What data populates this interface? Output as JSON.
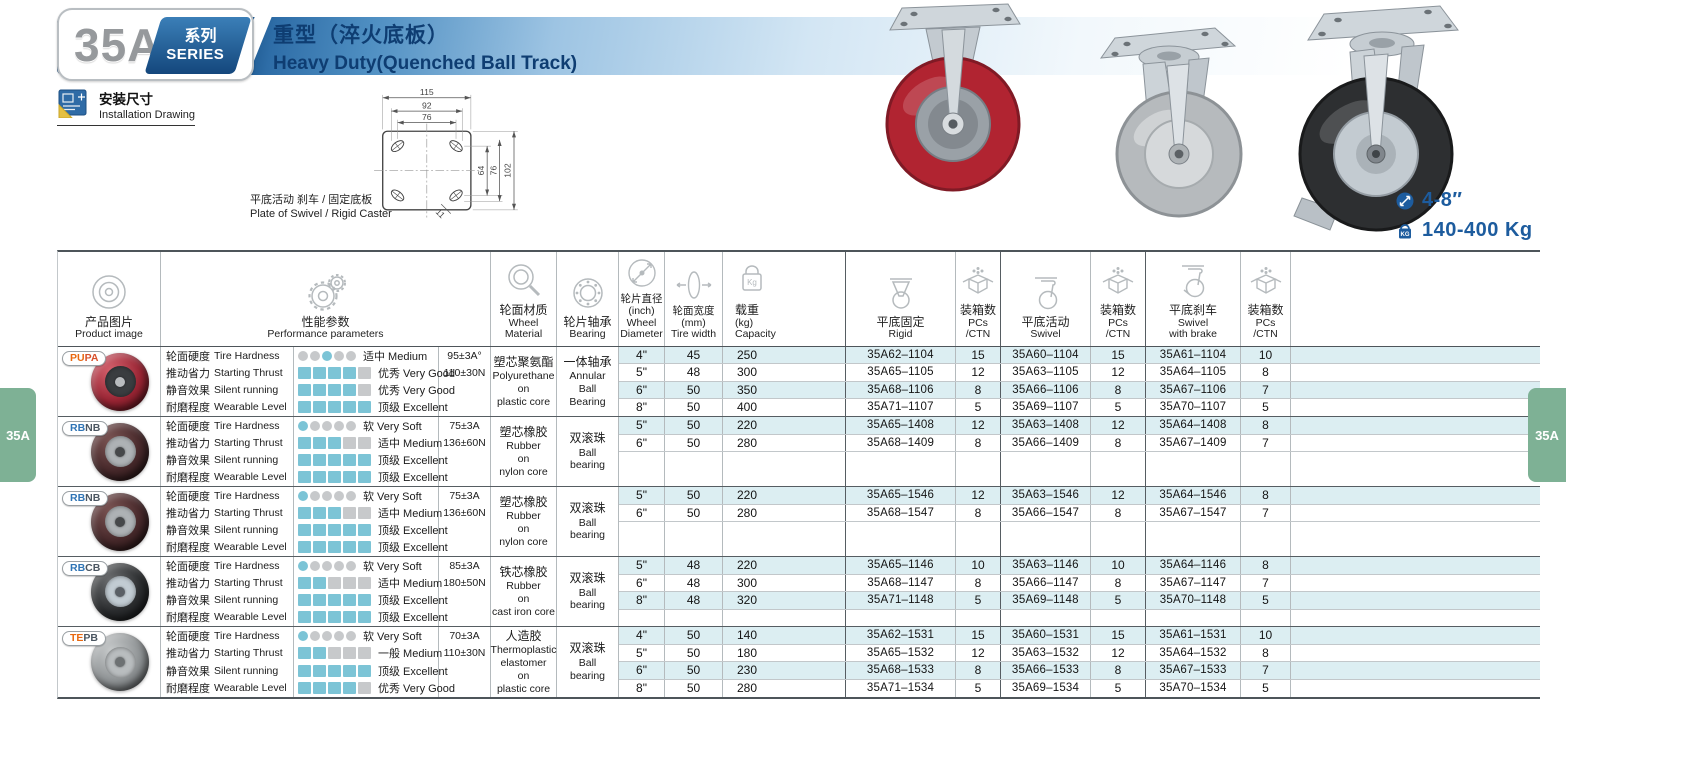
{
  "page": {
    "series_code": "35A",
    "series_cn": "系列",
    "series_en": "SERIES",
    "title_cn": "重型（淬火底板）",
    "title_en": "Heavy Duty(Quenched Ball Track)",
    "side_tab": "35A"
  },
  "installation": {
    "label_cn": "安装尺寸",
    "label_en": "Installation Drawing",
    "caption_cn": "平底活动 刹车 / 固定底板",
    "caption_en": "Plate of Swivel / Rigid Caster",
    "dims": {
      "top": [
        "115",
        "92",
        "76"
      ],
      "right": [
        "64",
        "76",
        "102"
      ],
      "slot": "11"
    }
  },
  "badges": {
    "size_range": "4-8″",
    "capacity_range": "140-400 Kg"
  },
  "colors": {
    "accent_blue": "#1d5c9e",
    "banner_navy": "#0e3d72",
    "row_shade": "#dceef2",
    "rating_on": "#7cc4d6",
    "rating_off": "#c7c9cb",
    "tab_green": "#7eb195"
  },
  "table": {
    "headers": [
      {
        "icon": "wheel-icon",
        "cn": "产品图片",
        "en": "Product image"
      },
      {
        "icon": "gears-icon",
        "cn": "性能参数",
        "en": "Performance parameters"
      },
      {
        "icon": "magnifier-icon",
        "cn": "轮面材质",
        "en": "Wheel",
        "en2": "Material"
      },
      {
        "icon": "bearing-icon",
        "cn": "轮片轴承",
        "en": "Bearing"
      },
      {
        "icon": "diameter-icon",
        "cn": "轮片直径",
        "en": "(inch)",
        "en2": "Wheel",
        "en3": "Diameter"
      },
      {
        "icon": "tire-width-icon",
        "cn": "轮面宽度",
        "en": "(mm)",
        "en2": "Tire width"
      },
      {
        "icon": "weight-icon",
        "cn": "载重",
        "en": "(kg)",
        "en2": "Capacity"
      },
      {
        "icon": "rigid-caster-icon",
        "cn": "平底固定",
        "en": "Rigid"
      },
      {
        "icon": "box-icon",
        "cn": "装箱数",
        "en": "PCs",
        "en2": "/CTN"
      },
      {
        "icon": "swivel-caster-icon",
        "cn": "平底活动",
        "en": "Swivel"
      },
      {
        "icon": "box-icon",
        "cn": "装箱数",
        "en": "PCs",
        "en2": "/CTN"
      },
      {
        "icon": "brake-caster-icon",
        "cn": "平底刹车",
        "en": "Swivel",
        "en2": "with brake"
      },
      {
        "icon": "box-icon",
        "cn": "装箱数",
        "en": "PCs",
        "en2": "/CTN"
      }
    ],
    "groups": [
      {
        "code": [
          {
            "t": "PU",
            "c": "#e9680f"
          },
          {
            "t": "PA",
            "c": "#d8502b"
          }
        ],
        "params": [
          {
            "cn": "轮面硬度",
            "en": "Tire Hardness",
            "type": "circles",
            "level": 3,
            "grade_cn": "适中",
            "grade_en": "Medium",
            "value": "95±3A°"
          },
          {
            "cn": "推动省力",
            "en": "Starting Thrust",
            "type": "squares",
            "level": 4,
            "grade_cn": "优秀",
            "grade_en": "Very Good",
            "value": "110±30N"
          },
          {
            "cn": "静音效果",
            "en": "Silent running",
            "type": "squares",
            "level": 4,
            "grade_cn": "优秀",
            "grade_en": "Very Good",
            "value": ""
          },
          {
            "cn": "耐磨程度",
            "en": "Wearable Level",
            "type": "squares",
            "level": 5,
            "grade_cn": "顶级",
            "grade_en": "Excellent",
            "value": ""
          }
        ],
        "material_cn": "塑芯聚氨酯",
        "material_en": [
          "Polyurethane",
          "on",
          "plastic core"
        ],
        "bearing_cn": "一体轴承",
        "bearing_en": [
          "Annular",
          "Ball",
          "Bearing"
        ],
        "wheel": {
          "hi": "#d4606c",
          "tire": "#982433",
          "dark": "#4e1118",
          "hub": "#3a3d40",
          "axle": "#b9bcbf"
        },
        "rows": [
          [
            "4\"",
            "45",
            "250",
            "35A62–1104",
            "15",
            "35A60–1104",
            "15",
            "35A61–1104",
            "10"
          ],
          [
            "5\"",
            "48",
            "300",
            "35A65–1105",
            "12",
            "35A63–1105",
            "12",
            "35A64–1105",
            "8"
          ],
          [
            "6\"",
            "50",
            "350",
            "35A68–1106",
            "8",
            "35A66–1106",
            "8",
            "35A67–1106",
            "7"
          ],
          [
            "8\"",
            "50",
            "400",
            "35A71–1107",
            "5",
            "35A69–1107",
            "5",
            "35A70–1107",
            "5"
          ]
        ]
      },
      {
        "code": [
          {
            "t": "RB",
            "c": "#2f74b5"
          },
          {
            "t": "NB",
            "c": "#4a5560"
          }
        ],
        "params": [
          {
            "cn": "轮面硬度",
            "en": "Tire Hardness",
            "type": "circles",
            "level": 1,
            "grade_cn": "软",
            "grade_en": "Very Soft",
            "value": "75±3A"
          },
          {
            "cn": "推动省力",
            "en": "Starting Thrust",
            "type": "squares",
            "level": 3,
            "grade_cn": "适中",
            "grade_en": "Medium",
            "value": "136±60N"
          },
          {
            "cn": "静音效果",
            "en": "Silent running",
            "type": "squares",
            "level": 5,
            "grade_cn": "顶级",
            "grade_en": "Excellent",
            "value": ""
          },
          {
            "cn": "耐磨程度",
            "en": "Wearable Level",
            "type": "squares",
            "level": 5,
            "grade_cn": "顶级",
            "grade_en": "Excellent",
            "value": ""
          }
        ],
        "material_cn": "塑芯橡胶",
        "material_en": [
          "Rubber",
          "on",
          "nylon core"
        ],
        "bearing_cn": "双滚珠",
        "bearing_en": [
          "Ball",
          "bearing"
        ],
        "wheel": {
          "hi": "#7a5352",
          "tire": "#46282a",
          "dark": "#1d0f10",
          "hub": "#aeb2b5",
          "axle": "#46484a"
        },
        "rows": [
          [
            "5\"",
            "50",
            "220",
            "35A65–1408",
            "12",
            "35A63–1408",
            "12",
            "35A64–1408",
            "8"
          ],
          [
            "6\"",
            "50",
            "280",
            "35A68–1409",
            "8",
            "35A66–1409",
            "8",
            "35A67–1409",
            "7"
          ]
        ]
      },
      {
        "code": [
          {
            "t": "RB",
            "c": "#2f74b5"
          },
          {
            "t": "NB",
            "c": "#4a5560"
          }
        ],
        "params": [
          {
            "cn": "轮面硬度",
            "en": "Tire Hardness",
            "type": "circles",
            "level": 1,
            "grade_cn": "软",
            "grade_en": "Very Soft",
            "value": "75±3A"
          },
          {
            "cn": "推动省力",
            "en": "Starting Thrust",
            "type": "squares",
            "level": 3,
            "grade_cn": "适中",
            "grade_en": "Medium",
            "value": "136±60N"
          },
          {
            "cn": "静音效果",
            "en": "Silent running",
            "type": "squares",
            "level": 5,
            "grade_cn": "顶级",
            "grade_en": "Excellent",
            "value": ""
          },
          {
            "cn": "耐磨程度",
            "en": "Wearable Level",
            "type": "squares",
            "level": 5,
            "grade_cn": "顶级",
            "grade_en": "Excellent",
            "value": ""
          }
        ],
        "material_cn": "塑芯橡胶",
        "material_en": [
          "Rubber",
          "on",
          "nylon core"
        ],
        "bearing_cn": "双滚珠",
        "bearing_en": [
          "Ball",
          "bearing"
        ],
        "wheel": {
          "hi": "#7a5352",
          "tire": "#46282a",
          "dark": "#1d0f10",
          "hub": "#aeb2b5",
          "axle": "#46484a"
        },
        "rows": [
          [
            "5\"",
            "50",
            "220",
            "35A65–1546",
            "12",
            "35A63–1546",
            "12",
            "35A64–1546",
            "8"
          ],
          [
            "6\"",
            "50",
            "280",
            "35A68–1547",
            "8",
            "35A66–1547",
            "8",
            "35A67–1547",
            "7"
          ]
        ]
      },
      {
        "code": [
          {
            "t": "RB",
            "c": "#2f74b5"
          },
          {
            "t": "CB",
            "c": "#4a5560"
          }
        ],
        "params": [
          {
            "cn": "轮面硬度",
            "en": "Tire Hardness",
            "type": "circles",
            "level": 1,
            "grade_cn": "软",
            "grade_en": "Very Soft",
            "value": "85±3A"
          },
          {
            "cn": "推动省力",
            "en": "Starting Thrust",
            "type": "squares",
            "level": 2,
            "grade_cn": "适中",
            "grade_en": "Medium",
            "value": "180±50N"
          },
          {
            "cn": "静音效果",
            "en": "Silent running",
            "type": "squares",
            "level": 5,
            "grade_cn": "顶级",
            "grade_en": "Excellent",
            "value": ""
          },
          {
            "cn": "耐磨程度",
            "en": "Wearable Level",
            "type": "squares",
            "level": 5,
            "grade_cn": "顶级",
            "grade_en": "Excellent",
            "value": ""
          }
        ],
        "material_cn": "铁芯橡胶",
        "material_en": [
          "Rubber",
          "on",
          "cast iron core"
        ],
        "bearing_cn": "双滚珠",
        "bearing_en": [
          "Ball",
          "bearing"
        ],
        "wheel": {
          "hi": "#6b6d6f",
          "tire": "#2b2d2f",
          "dark": "#101112",
          "hub": "#c2ccd3",
          "axle": "#5a6066"
        },
        "rows": [
          [
            "5\"",
            "48",
            "220",
            "35A65–1146",
            "10",
            "35A63–1146",
            "10",
            "35A64–1146",
            "8"
          ],
          [
            "6\"",
            "48",
            "300",
            "35A68–1147",
            "8",
            "35A66–1147",
            "8",
            "35A67–1147",
            "7"
          ],
          [
            "8\"",
            "48",
            "320",
            "35A71–1148",
            "5",
            "35A69–1148",
            "5",
            "35A70–1148",
            "5"
          ]
        ]
      },
      {
        "code": [
          {
            "t": "TE",
            "c": "#e9680f"
          },
          {
            "t": "PB",
            "c": "#4a5560"
          }
        ],
        "params": [
          {
            "cn": "轮面硬度",
            "en": "Tire Hardness",
            "type": "circles",
            "level": 1,
            "grade_cn": "软",
            "grade_en": "Very Soft",
            "value": "70±3A"
          },
          {
            "cn": "推动省力",
            "en": "Starting Thrust",
            "type": "squares",
            "level": 2,
            "grade_cn": "一般",
            "grade_en": "Medium",
            "value": "110±30N"
          },
          {
            "cn": "静音效果",
            "en": "Silent running",
            "type": "squares",
            "level": 5,
            "grade_cn": "顶级",
            "grade_en": "Excellent",
            "value": ""
          },
          {
            "cn": "耐磨程度",
            "en": "Wearable Level",
            "type": "squares",
            "level": 4,
            "grade_cn": "优秀",
            "grade_en": "Very Good",
            "value": ""
          }
        ],
        "material_cn": "人造胶",
        "material_en": [
          "Thermoplastic",
          "elastomer",
          "on",
          "plastic core"
        ],
        "bearing_cn": "双滚珠",
        "bearing_en": [
          "Ball",
          "bearing"
        ],
        "wheel": {
          "hi": "#c6c9ca",
          "tire": "#8e9294",
          "dark": "#55585a",
          "hub": "#b9bdbf",
          "axle": "#6d7173"
        },
        "rows": [
          [
            "4\"",
            "50",
            "140",
            "35A62–1531",
            "15",
            "35A60–1531",
            "15",
            "35A61–1531",
            "10"
          ],
          [
            "5\"",
            "50",
            "180",
            "35A65–1532",
            "12",
            "35A63–1532",
            "12",
            "35A64–1532",
            "8"
          ],
          [
            "6\"",
            "50",
            "230",
            "35A68–1533",
            "8",
            "35A66–1533",
            "8",
            "35A67–1533",
            "7"
          ],
          [
            "8\"",
            "50",
            "280",
            "35A71–1534",
            "5",
            "35A69–1534",
            "5",
            "35A70–1534",
            "5"
          ]
        ]
      }
    ]
  }
}
